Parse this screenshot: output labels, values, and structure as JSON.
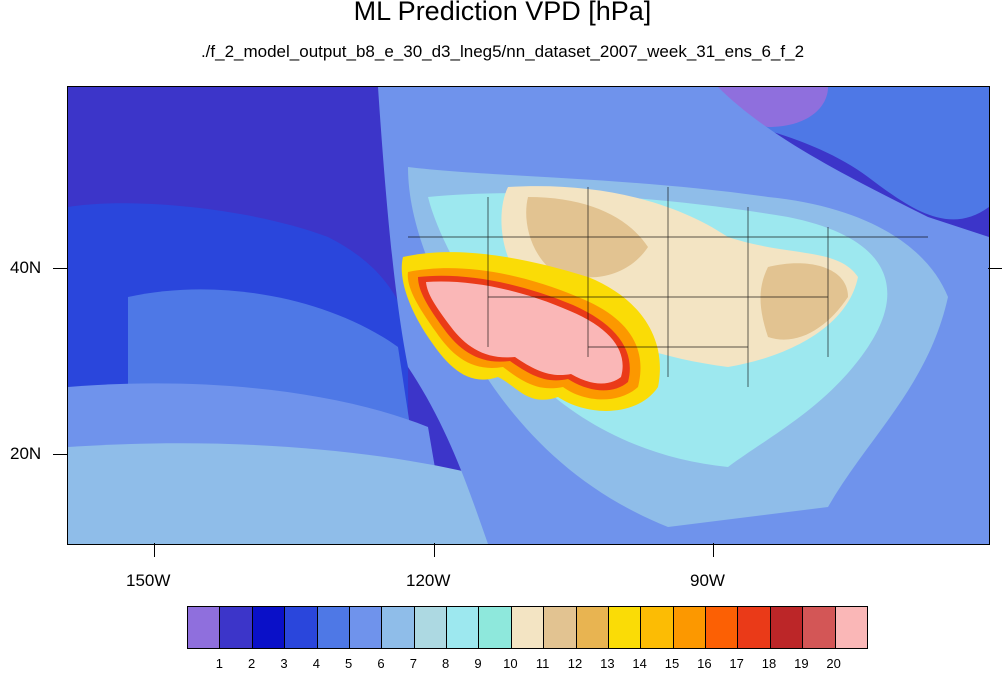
{
  "title": "ML Prediction VPD [hPa]",
  "subtitle": "./f_2_model_output_b8_e_30_d3_lneg5/nn_dataset_2007_week_31_ens_6_f_2",
  "map": {
    "lon_labels": [
      "150W",
      "120W",
      "90W"
    ],
    "lat_labels": [
      "40N",
      "20N"
    ]
  },
  "legend": {
    "colors": [
      "#8f6fdd",
      "#3c35c9",
      "#0a10c8",
      "#2a46dc",
      "#4e78e6",
      "#6f93ec",
      "#8fbde9",
      "#add9e2",
      "#9de8ef",
      "#8ee8dc",
      "#f3e4c3",
      "#e2c391",
      "#e8b451",
      "#fadc06",
      "#fcbc04",
      "#fc9800",
      "#fc6004",
      "#ea3a18",
      "#bc2628",
      "#d35656",
      "#fab7b7"
    ],
    "labels": [
      "1",
      "2",
      "3",
      "4",
      "5",
      "6",
      "7",
      "8",
      "9",
      "10",
      "11",
      "12",
      "13",
      "14",
      "15",
      "16",
      "17",
      "18",
      "19",
      "20"
    ]
  }
}
